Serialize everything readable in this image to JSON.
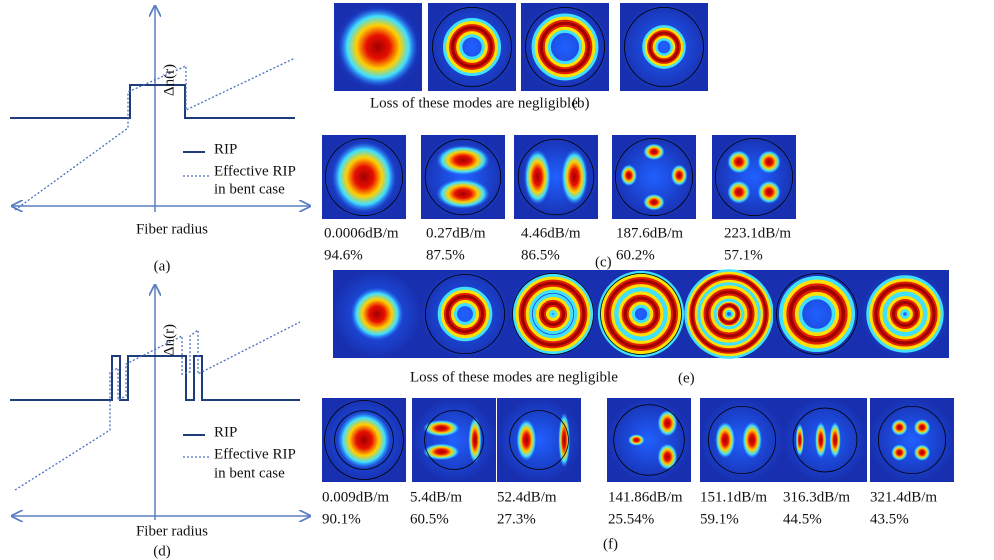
{
  "panel_a": {
    "y_label": "Δn(r)",
    "x_label": "Fiber radius",
    "legend": [
      "RIP",
      "Effective RIP",
      "in bent case"
    ],
    "label": "(a)"
  },
  "panel_b": {
    "caption": "Loss of these modes are negligible",
    "label": "(b)"
  },
  "panel_c": {
    "label": "(c)",
    "losses": [
      "0.0006dB/m",
      "0.27dB/m",
      "4.46dB/m",
      "187.6dB/m",
      "223.1dB/m"
    ],
    "overlaps": [
      "94.6%",
      "87.5%",
      "86.5%",
      "60.2%",
      "57.1%"
    ]
  },
  "panel_d": {
    "y_label": "Δn(r)",
    "x_label": "Fiber radius",
    "legend": [
      "RIP",
      "Effective RIP",
      "in bent case"
    ],
    "label": "(d)"
  },
  "panel_e": {
    "caption": "Loss of these modes are negligible",
    "label": "(e)"
  },
  "panel_f": {
    "label": "(f)",
    "losses": [
      "0.009dB/m",
      "5.4dB/m",
      "52.4dB/m",
      "141.86dB/m",
      "151.1dB/m",
      "316.3dB/m",
      "321.4dB/m"
    ],
    "overlaps": [
      "90.1%",
      "60.5%",
      "27.3%",
      "25.54%",
      "59.1%",
      "44.5%",
      "43.5%"
    ]
  }
}
